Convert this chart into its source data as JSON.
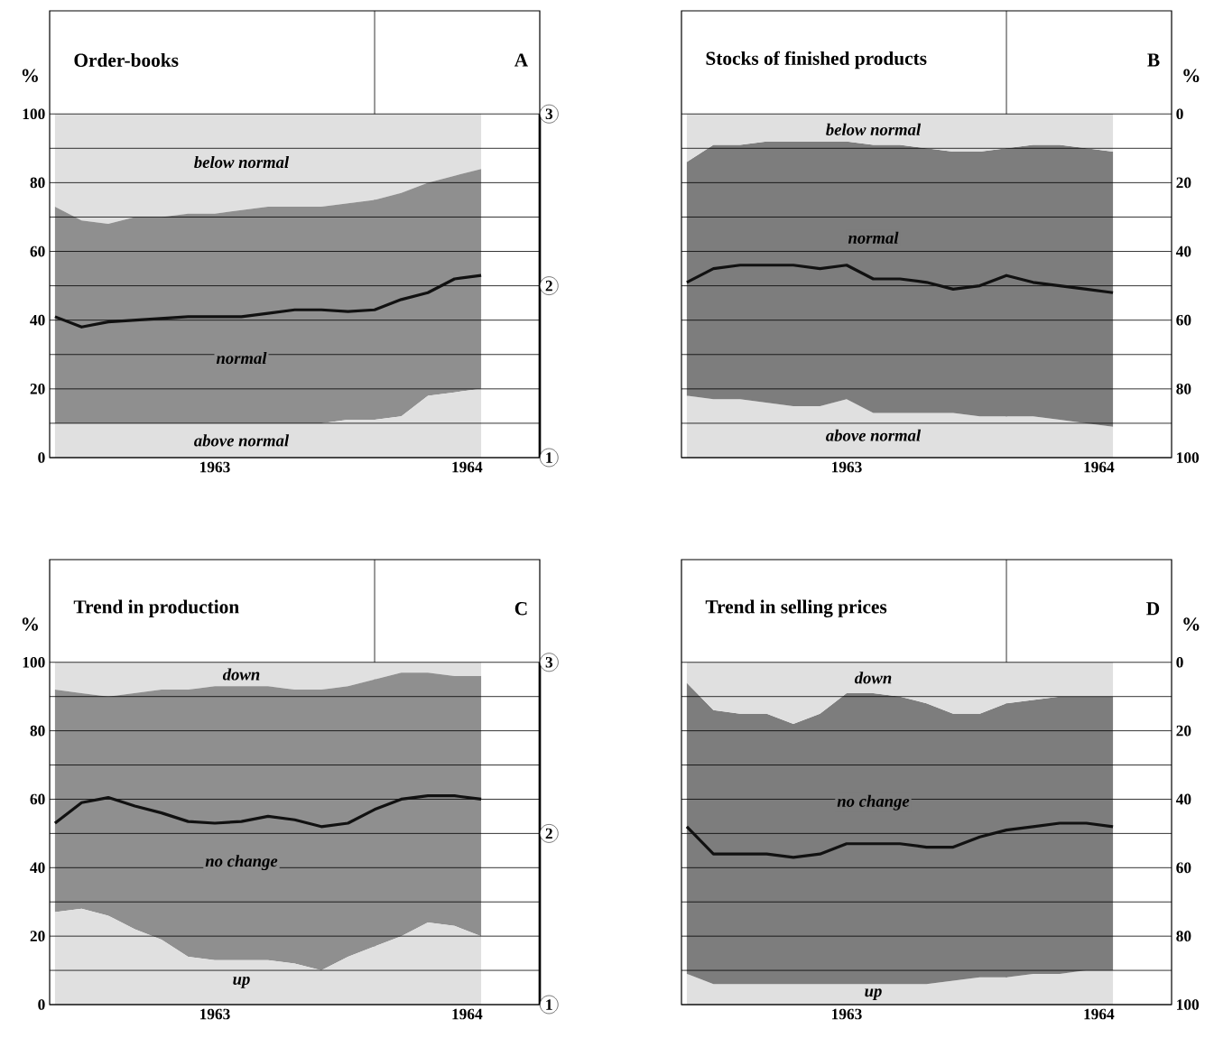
{
  "chart_data": [
    {
      "type": "area",
      "title": "Order-books",
      "annotations": [
        "A"
      ],
      "ylabel": "%",
      "stacked": true,
      "grid": "y",
      "x": [
        "1963-01",
        "1963-02",
        "1963-03",
        "1963-04",
        "1963-05",
        "1963-06",
        "1963-07",
        "1963-08",
        "1963-09",
        "1963-10",
        "1963-11",
        "1963-12",
        "1964-01",
        "1964-02",
        "1964-03",
        "1964-04",
        "1964-05"
      ],
      "xlim": [
        "1962-12-25",
        "1964-07-07"
      ],
      "xticks": [
        {
          "value": "1963-07",
          "label": "1963"
        },
        {
          "value": "1964-04-15",
          "label": "1964"
        }
      ],
      "ylim": [
        0,
        130
      ],
      "yticks": [
        0,
        {
          "value": 10,
          "label": null
        },
        20,
        {
          "value": 30,
          "label": null
        },
        40,
        {
          "value": 50,
          "label": null
        },
        60,
        {
          "value": 70,
          "label": null
        },
        80,
        {
          "value": 90,
          "label": null
        },
        100
      ],
      "y2lim": [
        1,
        3
      ],
      "y2ticks": [
        1,
        2,
        3
      ],
      "ref_lines": [
        {
          "axis": "x",
          "value": "1964-01",
          "color": "#000000"
        }
      ],
      "series": [
        {
          "name": "above normal",
          "color": "#e0e0e0",
          "values": [
            10,
            10,
            10,
            10,
            10,
            10,
            10,
            10,
            10,
            10,
            10,
            11,
            11,
            12,
            18,
            19,
            20
          ]
        },
        {
          "name": "normal",
          "color": "#8f8f8f",
          "values": [
            63,
            59,
            58,
            60,
            60,
            61,
            61,
            62,
            63,
            63,
            63,
            63,
            64,
            65,
            62,
            63,
            64
          ]
        },
        {
          "name": "below normal",
          "color": "#e0e0e0",
          "values": [
            27,
            31,
            32,
            30,
            30,
            29,
            29,
            28,
            27,
            27,
            27,
            26,
            25,
            23,
            20,
            18,
            16
          ]
        },
        {
          "type": "line",
          "axis": "y2",
          "color": "#111111",
          "values": [
            1.82,
            1.76,
            1.79,
            1.8,
            1.81,
            1.82,
            1.82,
            1.82,
            1.84,
            1.86,
            1.86,
            1.85,
            1.86,
            1.92,
            1.96,
            2.04,
            2.06
          ]
        }
      ]
    },
    {
      "type": "area",
      "title": "Stocks of finished products",
      "annotations": [
        "B"
      ],
      "ylabel": "%",
      "stacked": true,
      "grid": "y",
      "x": [
        "1963-01",
        "1963-02",
        "1963-03",
        "1963-04",
        "1963-05",
        "1963-06",
        "1963-07",
        "1963-08",
        "1963-09",
        "1963-10",
        "1963-11",
        "1963-12",
        "1964-01",
        "1964-02",
        "1964-03",
        "1964-04",
        "1964-05"
      ],
      "xlim": [
        "1962-12-25",
        "1964-07-07"
      ],
      "xticks": [
        {
          "value": "1963-07",
          "label": "1963"
        },
        {
          "value": "1964-04-15",
          "label": "1964"
        }
      ],
      "ylim": [
        100,
        -30
      ],
      "yticks": [
        0,
        {
          "value": 10,
          "label": null
        },
        20,
        {
          "value": 30,
          "label": null
        },
        40,
        {
          "value": 50,
          "label": null
        },
        60,
        {
          "value": 70,
          "label": null
        },
        80,
        {
          "value": 90,
          "label": null
        },
        100
      ],
      "ref_lines": [
        {
          "axis": "x",
          "value": "1964-01",
          "color": "#000000"
        }
      ],
      "series": [
        {
          "name": "below normal",
          "color": "#e0e0e0",
          "values": [
            14,
            9,
            9,
            8,
            8,
            8,
            8,
            9,
            9,
            10,
            11,
            11,
            10,
            9,
            9,
            10,
            11
          ]
        },
        {
          "name": "normal",
          "color": "#7d7d7d",
          "values": [
            68,
            74,
            74,
            76,
            77,
            77,
            75,
            78,
            78,
            77,
            76,
            77,
            78,
            79,
            80,
            80,
            80
          ]
        },
        {
          "name": "above normal",
          "color": "#e0e0e0",
          "values": [
            18,
            17,
            17,
            16,
            15,
            15,
            17,
            13,
            13,
            13,
            13,
            12,
            12,
            12,
            11,
            10,
            9
          ]
        },
        {
          "type": "line",
          "color": "#111111",
          "values": [
            49,
            45,
            44,
            44,
            44,
            45,
            44,
            48,
            48,
            49,
            51,
            50,
            47,
            49,
            50,
            51,
            52
          ]
        }
      ]
    },
    {
      "type": "area",
      "title": "Trend in production",
      "annotations": [
        "C"
      ],
      "ylabel": "%",
      "stacked": true,
      "grid": "y",
      "x": [
        "1963-01",
        "1963-02",
        "1963-03",
        "1963-04",
        "1963-05",
        "1963-06",
        "1963-07",
        "1963-08",
        "1963-09",
        "1963-10",
        "1963-11",
        "1963-12",
        "1964-01",
        "1964-02",
        "1964-03",
        "1964-04",
        "1964-05"
      ],
      "xlim": [
        "1962-12-25",
        "1964-07-07"
      ],
      "xticks": [
        {
          "value": "1963-07",
          "label": "1963"
        },
        {
          "value": "1964-04-15",
          "label": "1964"
        }
      ],
      "ylim": [
        0,
        130
      ],
      "yticks": [
        0,
        {
          "value": 10,
          "label": null
        },
        20,
        {
          "value": 30,
          "label": null
        },
        40,
        {
          "value": 50,
          "label": null
        },
        60,
        {
          "value": 70,
          "label": null
        },
        80,
        {
          "value": 90,
          "label": null
        },
        100
      ],
      "y2lim": [
        1,
        3
      ],
      "y2ticks": [
        1,
        2,
        3
      ],
      "ref_lines": [
        {
          "axis": "x",
          "value": "1964-01",
          "color": "#000000"
        }
      ],
      "series": [
        {
          "name": "up",
          "color": "#e0e0e0",
          "values": [
            27,
            28,
            26,
            22,
            19,
            14,
            13,
            13,
            13,
            12,
            10,
            14,
            17,
            20,
            24,
            23,
            20
          ]
        },
        {
          "name": "no change",
          "color": "#8f8f8f",
          "values": [
            65,
            63,
            64,
            69,
            73,
            78,
            80,
            80,
            80,
            80,
            82,
            79,
            78,
            77,
            73,
            73,
            76
          ]
        },
        {
          "name": "down",
          "color": "#e0e0e0",
          "values": [
            8,
            9,
            10,
            9,
            8,
            8,
            7,
            7,
            7,
            8,
            8,
            7,
            5,
            3,
            3,
            4,
            4
          ]
        },
        {
          "type": "line",
          "axis": "y2",
          "color": "#111111",
          "values": [
            2.06,
            2.18,
            2.21,
            2.16,
            2.12,
            2.07,
            2.06,
            2.07,
            2.1,
            2.08,
            2.04,
            2.06,
            2.14,
            2.2,
            2.22,
            2.22,
            2.2
          ]
        }
      ]
    },
    {
      "type": "area",
      "title": "Trend in selling prices",
      "annotations": [
        "D"
      ],
      "ylabel": "%",
      "stacked": true,
      "grid": "y",
      "x": [
        "1963-01",
        "1963-02",
        "1963-03",
        "1963-04",
        "1963-05",
        "1963-06",
        "1963-07",
        "1963-08",
        "1963-09",
        "1963-10",
        "1963-11",
        "1963-12",
        "1964-01",
        "1964-02",
        "1964-03",
        "1964-04",
        "1964-05"
      ],
      "xlim": [
        "1962-12-25",
        "1964-07-07"
      ],
      "xticks": [
        {
          "value": "1963-07",
          "label": "1963"
        },
        {
          "value": "1964-04-15",
          "label": "1964"
        }
      ],
      "ylim": [
        100,
        -30
      ],
      "yticks": [
        0,
        {
          "value": 10,
          "label": null
        },
        20,
        {
          "value": 30,
          "label": null
        },
        40,
        {
          "value": 50,
          "label": null
        },
        60,
        {
          "value": 70,
          "label": null
        },
        80,
        {
          "value": 90,
          "label": null
        },
        100
      ],
      "ref_lines": [
        {
          "axis": "x",
          "value": "1964-01",
          "color": "#000000"
        }
      ],
      "series": [
        {
          "name": "down",
          "color": "#e0e0e0",
          "values": [
            6,
            14,
            15,
            15,
            18,
            15,
            9,
            9,
            10,
            12,
            15,
            15,
            12,
            11,
            10,
            10,
            10
          ]
        },
        {
          "name": "no change",
          "color": "#7d7d7d",
          "values": [
            85,
            80,
            79,
            79,
            76,
            79,
            85,
            85,
            84,
            82,
            78,
            77,
            80,
            80,
            81,
            80,
            80
          ]
        },
        {
          "name": "up",
          "color": "#e0e0e0",
          "values": [
            9,
            6,
            6,
            6,
            6,
            6,
            6,
            6,
            6,
            6,
            7,
            8,
            8,
            9,
            9,
            10,
            10
          ]
        },
        {
          "type": "line",
          "color": "#111111",
          "values": [
            48,
            56,
            56,
            56,
            57,
            56,
            53,
            53,
            53,
            54,
            54,
            51,
            49,
            48,
            47,
            47,
            48
          ]
        }
      ]
    }
  ]
}
